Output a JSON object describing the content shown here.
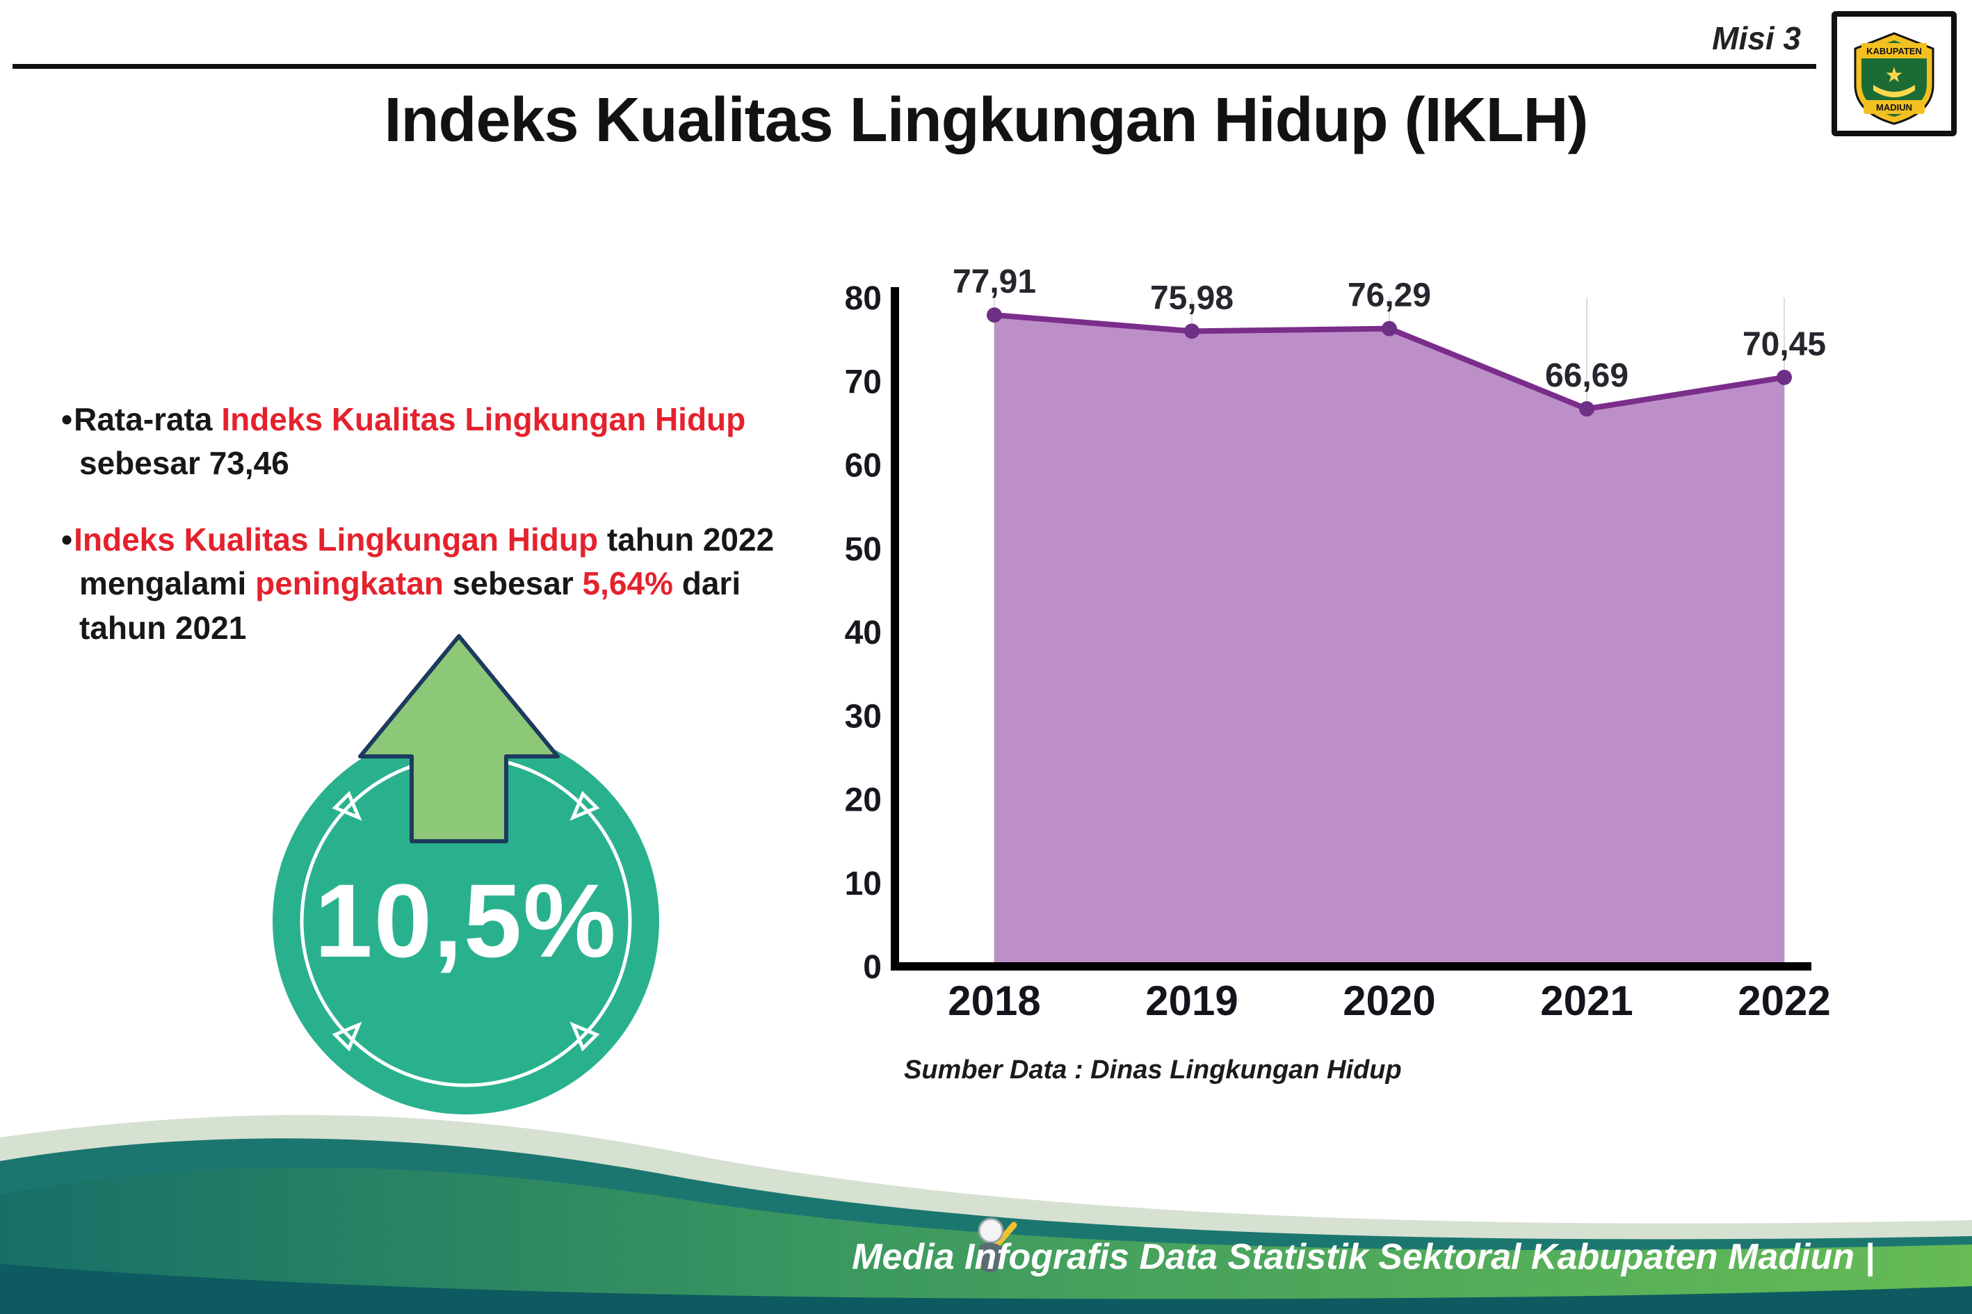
{
  "header": {
    "misi": "Misi 3",
    "title": "Indeks Kualitas Lingkungan Hidup (IKLH)"
  },
  "logo": {
    "kabupaten": "KABUPATEN",
    "madiun": "MADIUN"
  },
  "bullets": [
    {
      "lines": [
        [
          {
            "t": "Rata-rata ",
            "red": false
          },
          {
            "t": "Indeks Kualitas Lingkungan Hidup",
            "red": true
          }
        ],
        [
          {
            "t": "sebesar 73,46",
            "red": false
          }
        ]
      ]
    },
    {
      "lines": [
        [
          {
            "t": "Indeks Kualitas Lingkungan Hidup",
            "red": true
          },
          {
            "t": " tahun 2022",
            "red": false
          }
        ],
        [
          {
            "t": "mengalami ",
            "red": false
          },
          {
            "t": "peningkatan",
            "red": true
          },
          {
            "t": " sebesar ",
            "red": false
          },
          {
            "t": "5,64%",
            "red": true
          },
          {
            "t": " dari",
            "red": false
          }
        ],
        [
          {
            "t": "tahun 2021",
            "red": false
          }
        ]
      ]
    }
  ],
  "badge": {
    "value": "10,5%"
  },
  "chart_data": {
    "type": "area",
    "title": "Indeks Kualitas Lingkungan Hidup (IKLH)",
    "x": [
      "2018",
      "2019",
      "2020",
      "2021",
      "2022"
    ],
    "values": [
      77.91,
      75.98,
      76.29,
      66.69,
      70.45
    ],
    "labels": [
      "77,91",
      "75,98",
      "76,29",
      "66,69",
      "70,45"
    ],
    "xlabel": "",
    "ylabel": "",
    "ylim": [
      0,
      80
    ],
    "yticks": [
      0,
      10,
      20,
      30,
      40,
      50,
      60,
      70,
      80
    ],
    "grid": "vertical-light",
    "legend": "none",
    "source": "Sumber Data : Dinas Lingkungan Hidup",
    "colors": {
      "fill": "#bd8fc8",
      "line": "#7b2d8b",
      "dot": "#6e2f86"
    }
  },
  "footer": {
    "text": "Media Infografis Data Statistik Sektoral Kabupaten Madiun |"
  },
  "colors": {
    "accent_red": "#e4222d",
    "badge_teal": "#29b18e",
    "arrow_green": "#8dc878",
    "footer_dark_teal": "#0d5a60",
    "footer_green": "#5fb75a"
  }
}
